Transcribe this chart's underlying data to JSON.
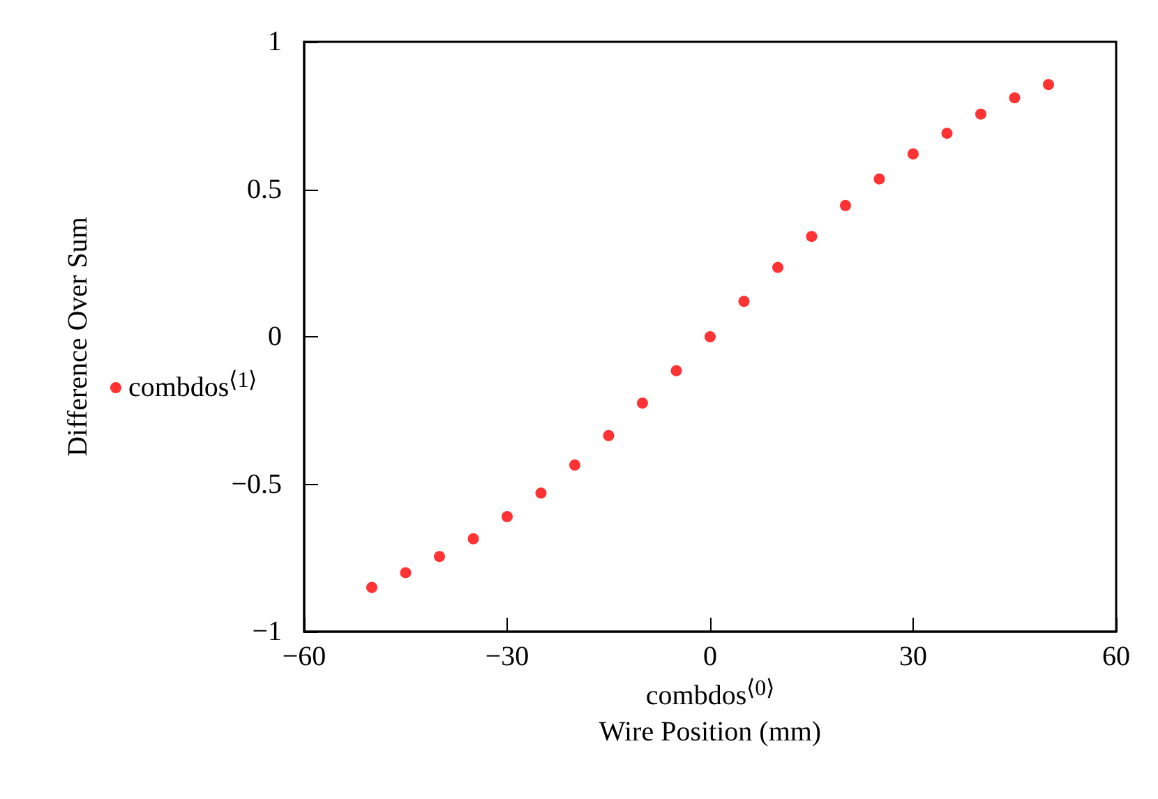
{
  "chart_data": {
    "type": "scatter",
    "xlabel": "combdos$^{⟨0⟩}$\nWire Position (mm)",
    "ylabel": "Difference Over Sum",
    "x": [
      -50,
      -45,
      -40,
      -35,
      -30,
      -25,
      -20,
      -15,
      -10,
      -5,
      0,
      5,
      10,
      15,
      20,
      25,
      30,
      35,
      40,
      45,
      50
    ],
    "series": [
      {
        "name": "combdos$^{⟨1⟩}$",
        "color": "#ff0000",
        "values": [
          -0.85,
          -0.8,
          -0.745,
          -0.685,
          -0.61,
          -0.53,
          -0.435,
          -0.335,
          -0.225,
          -0.115,
          0,
          0.12,
          0.235,
          0.34,
          0.445,
          0.535,
          0.62,
          0.69,
          0.755,
          0.81,
          0.855
        ]
      }
    ],
    "xlim": [
      -60,
      60
    ],
    "xticks": [
      -60,
      -30,
      0,
      30,
      60
    ],
    "ylim": [
      -1,
      1
    ],
    "yticks": [
      -1,
      -0.5,
      0,
      0.5,
      1
    ],
    "grid": false,
    "legend": "left",
    "marker": "circle"
  }
}
